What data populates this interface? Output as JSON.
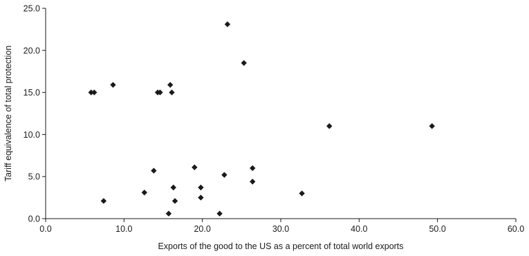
{
  "chart_data": {
    "type": "scatter",
    "title": "",
    "xlabel": "Exports of the good to the US as a percent of total world exports",
    "ylabel": "Tariff equivalence of total protection",
    "xlim": [
      0,
      60
    ],
    "ylim": [
      0,
      25
    ],
    "x_ticks": [
      "0.0",
      "10.0",
      "20.0",
      "30.0",
      "40.0",
      "50.0",
      "60.0"
    ],
    "y_ticks": [
      "0.0",
      "5.0",
      "10.0",
      "15.0",
      "20.0",
      "25.0"
    ],
    "grid": false,
    "marker": "diamond",
    "marker_color": "#1a1a1a",
    "points": [
      {
        "x": 5.8,
        "y": 15.0
      },
      {
        "x": 6.2,
        "y": 15.0
      },
      {
        "x": 8.6,
        "y": 15.9
      },
      {
        "x": 14.3,
        "y": 15.0
      },
      {
        "x": 14.6,
        "y": 15.0
      },
      {
        "x": 15.9,
        "y": 15.9
      },
      {
        "x": 16.1,
        "y": 15.0
      },
      {
        "x": 23.2,
        "y": 23.1
      },
      {
        "x": 25.3,
        "y": 18.5
      },
      {
        "x": 36.2,
        "y": 11.0
      },
      {
        "x": 49.3,
        "y": 11.0
      },
      {
        "x": 7.4,
        "y": 2.1
      },
      {
        "x": 12.6,
        "y": 3.1
      },
      {
        "x": 13.8,
        "y": 5.7
      },
      {
        "x": 15.7,
        "y": 0.6
      },
      {
        "x": 16.3,
        "y": 3.7
      },
      {
        "x": 16.5,
        "y": 2.1
      },
      {
        "x": 19.0,
        "y": 6.1
      },
      {
        "x": 19.8,
        "y": 3.7
      },
      {
        "x": 19.8,
        "y": 2.5
      },
      {
        "x": 22.2,
        "y": 0.6
      },
      {
        "x": 22.8,
        "y": 5.2
      },
      {
        "x": 26.4,
        "y": 6.0
      },
      {
        "x": 26.4,
        "y": 4.4
      },
      {
        "x": 32.7,
        "y": 3.0
      }
    ]
  }
}
